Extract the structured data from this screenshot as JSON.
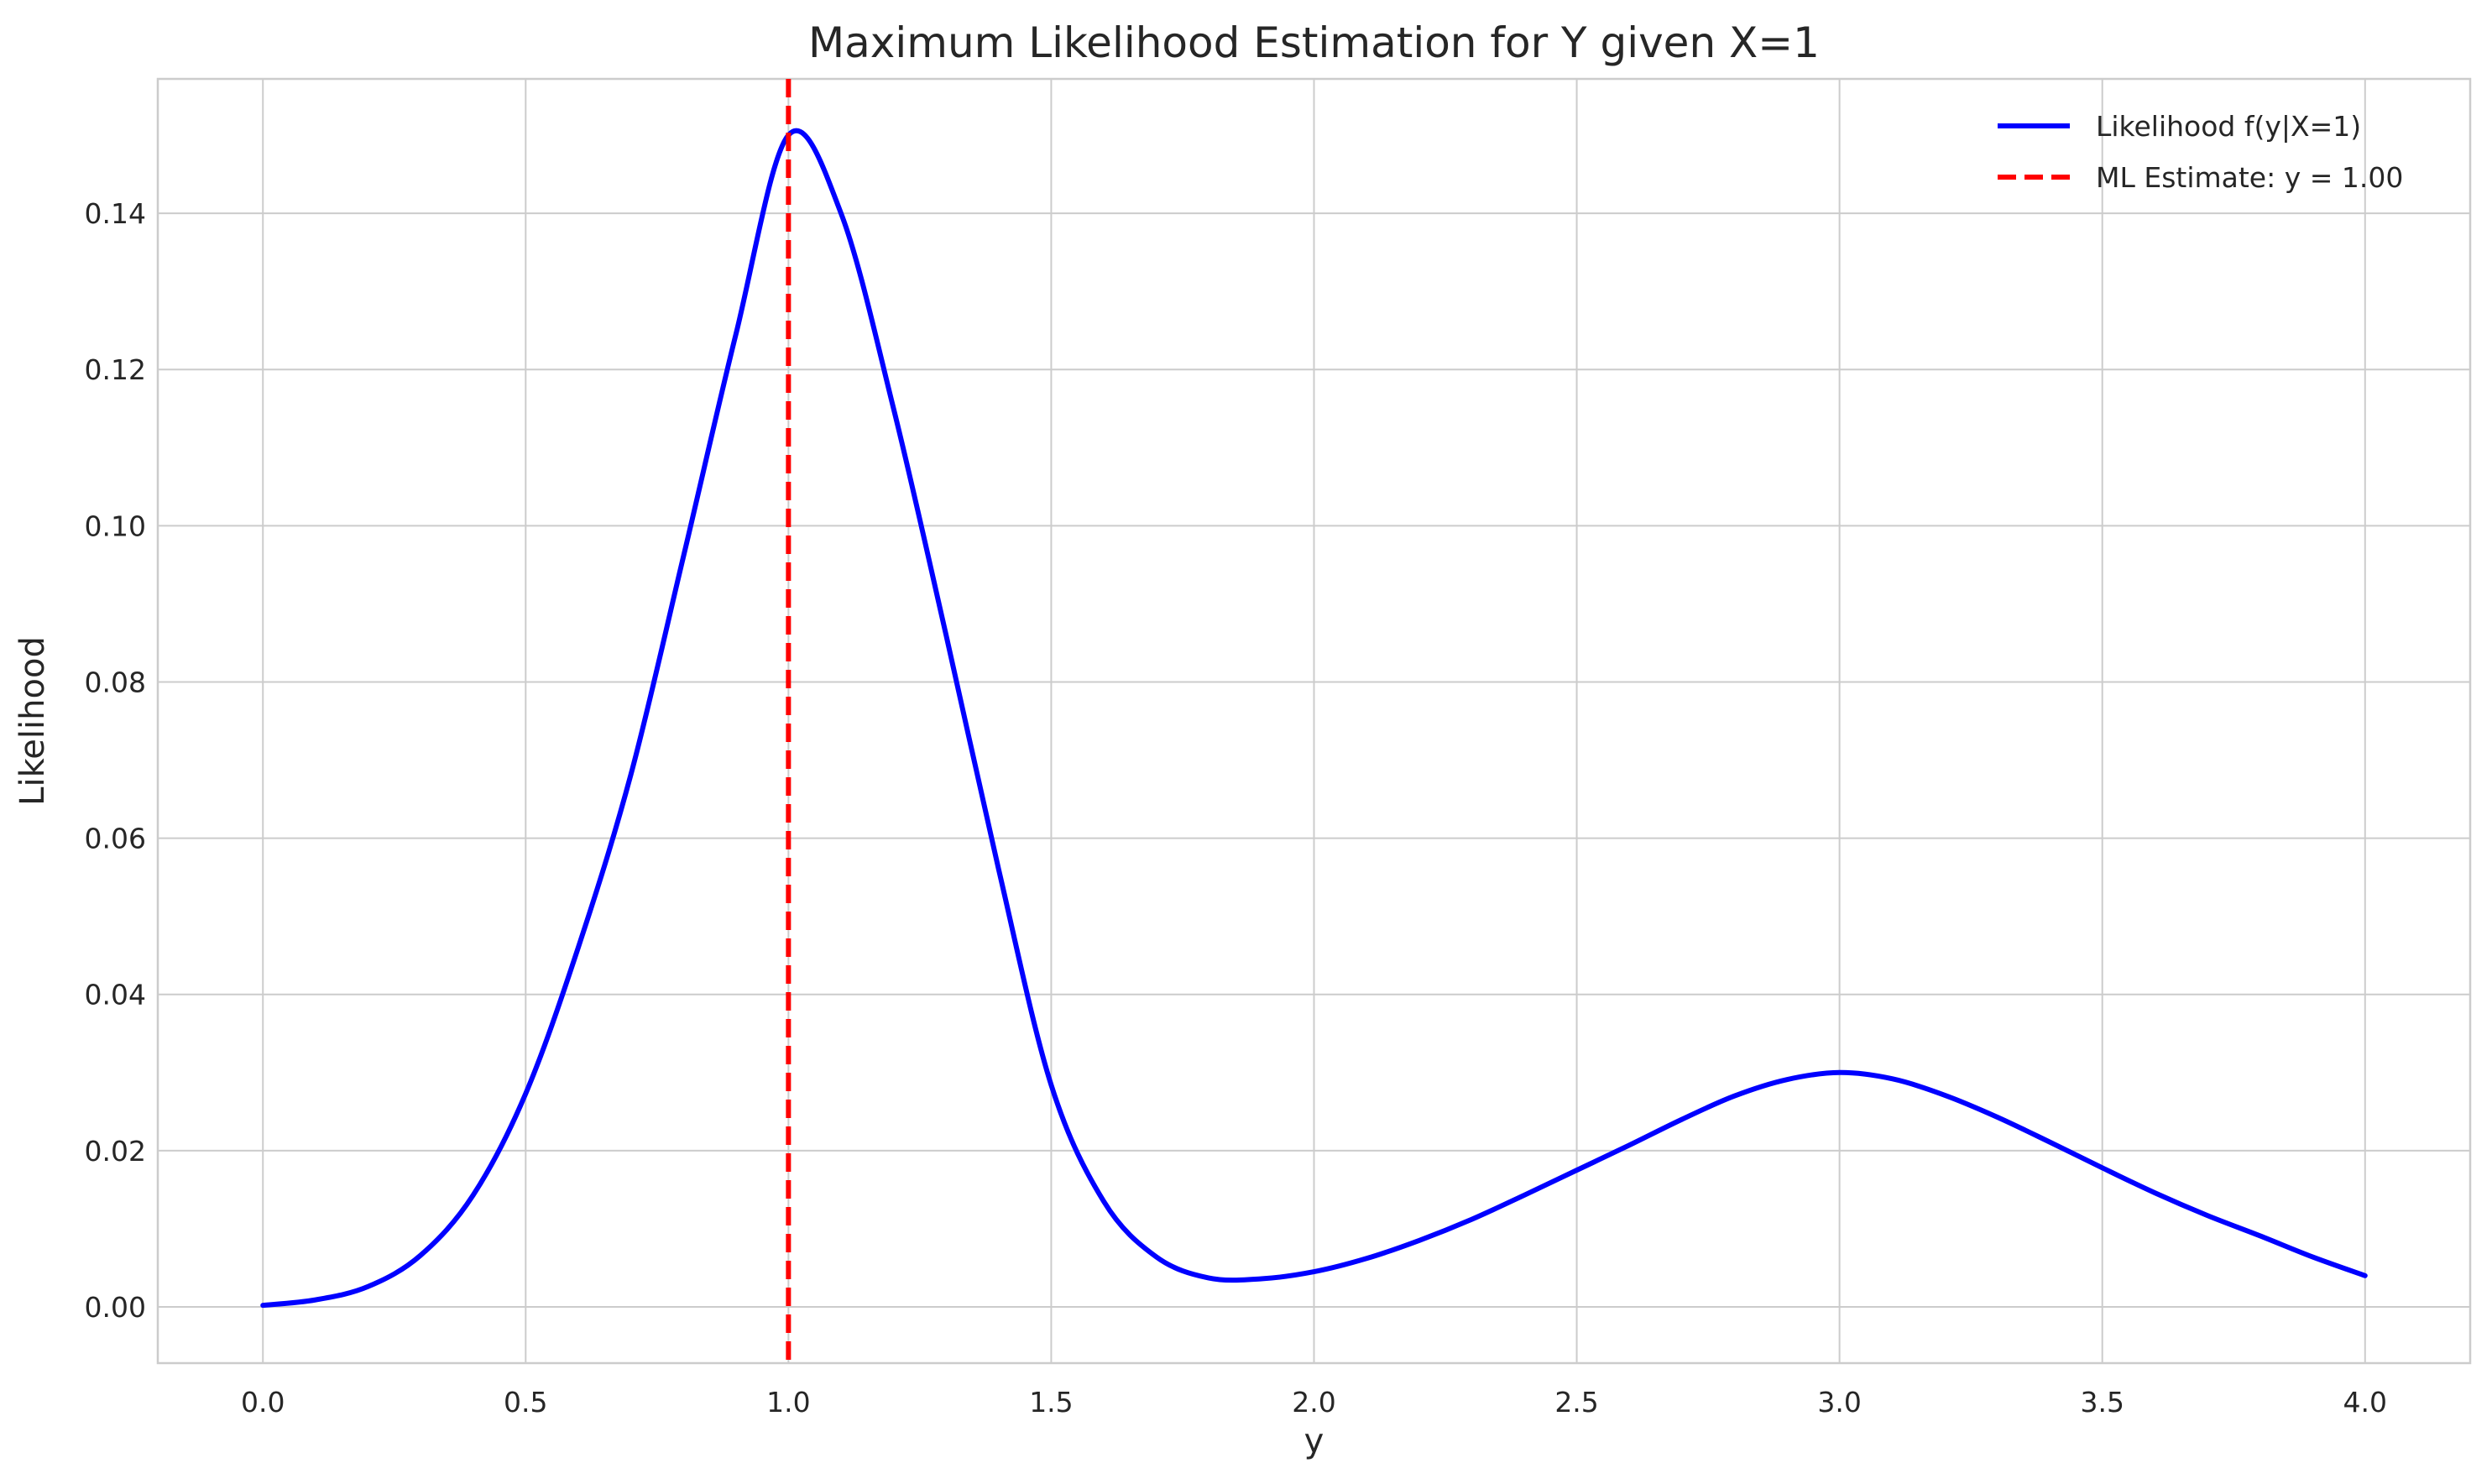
{
  "chart_data": {
    "type": "line",
    "title": "Maximum Likelihood Estimation for Y given X=1",
    "xlabel": "y",
    "ylabel": "Likelihood",
    "xlim": [
      -0.2,
      4.2
    ],
    "ylim": [
      -0.0072,
      0.1572
    ],
    "xticks": [
      0.0,
      0.5,
      1.0,
      1.5,
      2.0,
      2.5,
      3.0,
      3.5,
      4.0
    ],
    "xtick_labels": [
      "0.0",
      "0.5",
      "1.0",
      "1.5",
      "2.0",
      "2.5",
      "3.0",
      "3.5",
      "4.0"
    ],
    "yticks": [
      0.0,
      0.02,
      0.04,
      0.06,
      0.08,
      0.1,
      0.12,
      0.14
    ],
    "ytick_labels": [
      "0.00",
      "0.02",
      "0.04",
      "0.06",
      "0.08",
      "0.10",
      "0.12",
      "0.14"
    ],
    "grid": true,
    "legend_position": "top-right",
    "series": [
      {
        "name": "Likelihood f(y|X=1)",
        "color": "#0000ff",
        "style": "solid",
        "x": [
          0.0,
          0.1,
          0.2,
          0.3,
          0.4,
          0.5,
          0.6,
          0.7,
          0.8,
          0.9,
          1.0,
          1.1,
          1.2,
          1.3,
          1.4,
          1.5,
          1.6,
          1.7,
          1.8,
          1.9,
          2.0,
          2.1,
          2.2,
          2.3,
          2.4,
          2.5,
          2.6,
          2.7,
          2.8,
          2.9,
          3.0,
          3.1,
          3.2,
          3.3,
          3.4,
          3.5,
          3.6,
          3.7,
          3.8,
          3.9,
          4.0
        ],
        "y": [
          0.0002,
          0.0009,
          0.0026,
          0.0066,
          0.0143,
          0.0273,
          0.046,
          0.0681,
          0.096,
          0.1245,
          0.15,
          0.14,
          0.115,
          0.086,
          0.056,
          0.0284,
          0.0135,
          0.0064,
          0.0037,
          0.0036,
          0.0045,
          0.0062,
          0.0085,
          0.0112,
          0.0143,
          0.0175,
          0.0207,
          0.024,
          0.027,
          0.0291,
          0.03,
          0.0292,
          0.0271,
          0.0243,
          0.0211,
          0.0178,
          0.0146,
          0.0117,
          0.0091,
          0.0064,
          0.004
        ]
      },
      {
        "name": "ML Estimate: y = 1.00",
        "color": "#ff0000",
        "style": "dashed",
        "type": "vline",
        "x": 1.0
      }
    ]
  }
}
